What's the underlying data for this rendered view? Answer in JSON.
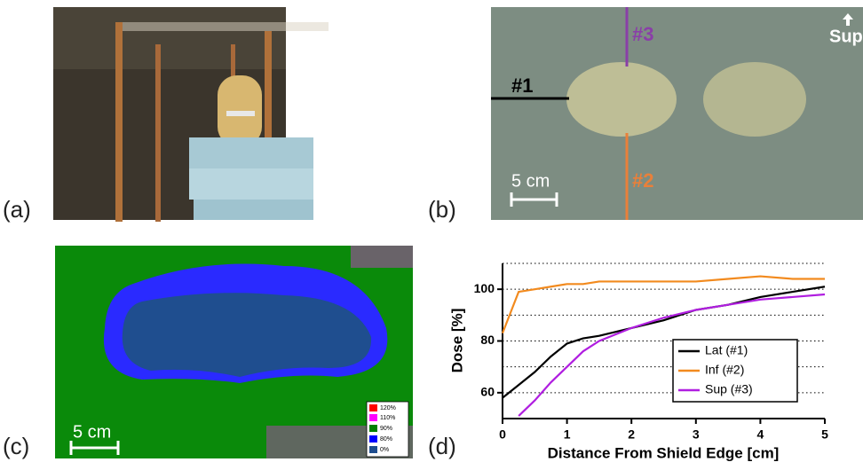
{
  "panel_labels": [
    "(a)",
    "(b)",
    "(c)",
    "(d)"
  ],
  "film": {
    "line3": "#3",
    "sup": "Sup",
    "line1": "#1",
    "scale": "5 cm",
    "line2": "#2"
  },
  "dose_map": {
    "scale": "5 cm",
    "legend": [
      "120%",
      "110%",
      "90%",
      "80%",
      "0%"
    ]
  },
  "chart_data": {
    "type": "line",
    "xlabel": "Distance From Shield Edge [cm]",
    "ylabel": "Dose [%]",
    "x": [
      0,
      0.25,
      0.5,
      0.75,
      1,
      1.25,
      1.5,
      2,
      2.5,
      3,
      3.5,
      4,
      4.5,
      5
    ],
    "series": [
      {
        "name": "Lat (#1)",
        "color": "#000000",
        "values": [
          58,
          63,
          68,
          74,
          79,
          81,
          82,
          85,
          88,
          92,
          94,
          97,
          99,
          101
        ]
      },
      {
        "name": "Inf (#2)",
        "color": "#f28a1e",
        "values": [
          83,
          99,
          100,
          101,
          102,
          102,
          103,
          103,
          103,
          103,
          104,
          105,
          104,
          104
        ]
      },
      {
        "name": "Sup (#3)",
        "color": "#b01ee0",
        "values": [
          null,
          51,
          57,
          64,
          70,
          76,
          80,
          85,
          89,
          92,
          94,
          96,
          97,
          98
        ]
      }
    ],
    "xlim": [
      0,
      5
    ],
    "xticks": [
      0,
      1,
      2,
      3,
      4,
      5
    ],
    "ylim": [
      50,
      110
    ],
    "yticks": [
      60,
      80,
      100
    ],
    "grid_lines": [
      60,
      70,
      80,
      90,
      100,
      110
    ],
    "legend": "lower right"
  }
}
